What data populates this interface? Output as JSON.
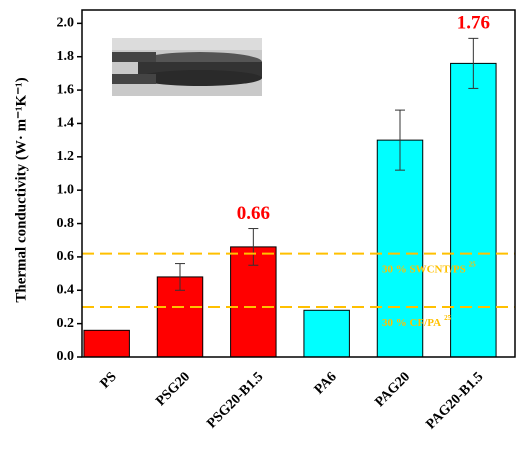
{
  "chart_data": {
    "type": "bar",
    "ylabel": "Thermal conductivity (W· m⁻¹K⁻¹)",
    "categories": [
      "PS",
      "PSG20",
      "PSG20-B1.5",
      "PA6",
      "PAG20",
      "PAG20-B1.5"
    ],
    "values": [
      0.16,
      0.48,
      0.66,
      0.28,
      1.3,
      1.76
    ],
    "errors": [
      null,
      0.08,
      0.11,
      null,
      0.18,
      0.15
    ],
    "value_labels": [
      null,
      null,
      "0.66",
      null,
      null,
      "1.76"
    ],
    "colors": [
      "#ff0000",
      "#ff0000",
      "#ff0000",
      "#00ffff",
      "#00ffff",
      "#00ffff"
    ],
    "value_label_color": "#ff0000",
    "ylim": [
      0,
      2.08
    ],
    "yticks": [
      {
        "value": 0,
        "label": "0.0"
      },
      0.2,
      0.4,
      0.6,
      0.8,
      {
        "value": 1,
        "label": "1.0"
      },
      1.2,
      1.4,
      1.6,
      1.8,
      {
        "value": 2,
        "label": "2.0"
      }
    ],
    "reference_lines": [
      {
        "value": 0.62,
        "label": "30 % SWCNT/PS",
        "ref": "25"
      },
      {
        "value": 0.3,
        "label": "30 % CF/PA",
        "ref": "25"
      }
    ],
    "reference_color": "#ffc000"
  }
}
